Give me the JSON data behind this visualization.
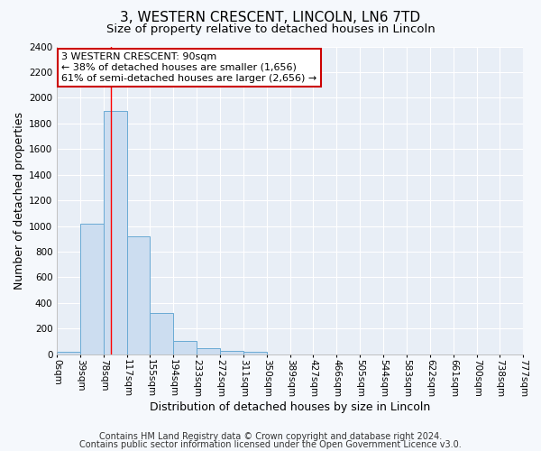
{
  "title": "3, WESTERN CRESCENT, LINCOLN, LN6 7TD",
  "subtitle": "Size of property relative to detached houses in Lincoln",
  "xlabel": "Distribution of detached houses by size in Lincoln",
  "ylabel": "Number of detached properties",
  "bar_edges": [
    0,
    39,
    78,
    117,
    155,
    194,
    233,
    272,
    311,
    350,
    389,
    427,
    466,
    505,
    544,
    583,
    622,
    661,
    700,
    738,
    777
  ],
  "bar_heights": [
    20,
    1020,
    1900,
    920,
    320,
    105,
    50,
    25,
    20,
    0,
    0,
    0,
    0,
    0,
    0,
    0,
    0,
    0,
    0,
    0
  ],
  "tick_labels": [
    "0sqm",
    "39sqm",
    "78sqm",
    "117sqm",
    "155sqm",
    "194sqm",
    "233sqm",
    "272sqm",
    "311sqm",
    "350sqm",
    "389sqm",
    "427sqm",
    "466sqm",
    "505sqm",
    "544sqm",
    "583sqm",
    "622sqm",
    "661sqm",
    "700sqm",
    "738sqm",
    "777sqm"
  ],
  "bar_color": "#ccddf0",
  "bar_edge_color": "#6aaad4",
  "red_line_x": 90,
  "ylim": [
    0,
    2400
  ],
  "yticks": [
    0,
    200,
    400,
    600,
    800,
    1000,
    1200,
    1400,
    1600,
    1800,
    2000,
    2200,
    2400
  ],
  "annotation_title": "3 WESTERN CRESCENT: 90sqm",
  "annotation_line1": "← 38% of detached houses are smaller (1,656)",
  "annotation_line2": "61% of semi-detached houses are larger (2,656) →",
  "annotation_box_color": "#ffffff",
  "annotation_box_edge": "#cc0000",
  "footer_line1": "Contains HM Land Registry data © Crown copyright and database right 2024.",
  "footer_line2": "Contains public sector information licensed under the Open Government Licence v3.0.",
  "plot_bg_color": "#e8eef6",
  "fig_bg_color": "#f5f8fc",
  "grid_color": "#ffffff",
  "title_fontsize": 11,
  "subtitle_fontsize": 9.5,
  "axis_label_fontsize": 9,
  "tick_fontsize": 7.5,
  "footer_fontsize": 7
}
